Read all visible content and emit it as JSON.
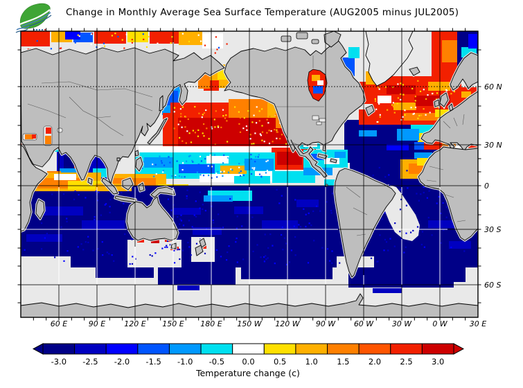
{
  "title": "Change in Monthly Average Sea Surface Temperature (AUG2005 minus JUL2005)",
  "logo": {
    "name": "green-leaf-ocean-logo"
  },
  "map": {
    "lon_tick_labels": [
      "60 E",
      "90 E",
      "120 E",
      "150 E",
      "180 E",
      "150 W",
      "120 W",
      "90 W",
      "60 W",
      "30 W",
      "0 W",
      "30 E"
    ],
    "lat_tick_labels": [
      "60 N",
      "30 N",
      "0",
      "30 S",
      "60 S"
    ]
  },
  "palette": {
    "land": "#BEBEBE",
    "ice": "#E8E8E8",
    "nodata": "#E9E9E9",
    "halo": "#E0E0E0",
    "coastline": "#000000",
    "country_border": "#5a5a5a",
    "grid_dark": "#000000",
    "grid_light": "#FFFFFF"
  },
  "colorbar": {
    "levels": [
      "-3.0",
      "-2.5",
      "-2.0",
      "-1.5",
      "-1.0",
      "-0.5",
      "0.0",
      "0.5",
      "1.0",
      "1.5",
      "2.0",
      "2.5",
      "3.0"
    ],
    "colors": [
      "#000087",
      "#0000C0",
      "#0000FF",
      "#0055FF",
      "#0099FF",
      "#00E0F0",
      "#FFFFFF",
      "#FFE000",
      "#FFB000",
      "#FF8000",
      "#FF5500",
      "#F22000",
      "#CD0000"
    ],
    "arrow_left_color": "#000087",
    "arrow_right_color": "#CD0000",
    "caption": "Temperature change  (c)"
  },
  "chart_data": {
    "type": "heatmap",
    "title": "Change in Monthly Average Sea Surface Temperature (AUG2005 minus JUL2005)",
    "x_tick_labels": [
      "60 E",
      "90 E",
      "120 E",
      "150 E",
      "180 E",
      "150 W",
      "120 W",
      "90 W",
      "60 W",
      "30 W",
      "0 W",
      "30 E"
    ],
    "y_tick_labels": [
      "60 N",
      "30 N",
      "0",
      "30 S",
      "60 S"
    ],
    "colorbar_levels": [
      -3.0,
      -2.5,
      -2.0,
      -1.5,
      -1.0,
      -0.5,
      0.0,
      0.5,
      1.0,
      1.5,
      2.0,
      2.5,
      3.0
    ],
    "colorbar_colors": [
      "#000087",
      "#0000C0",
      "#0000FF",
      "#0055FF",
      "#0099FF",
      "#00E0F0",
      "#FFFFFF",
      "#FFE000",
      "#FFB000",
      "#FF8000",
      "#FF5500",
      "#F22000",
      "#CD0000"
    ],
    "colorbar_caption": "Temperature change  (c)",
    "legend_position": "bottom",
    "grid": true,
    "regions_summary": [
      {
        "region": "North Pacific 25N-45N",
        "change_c": "+2.5 to +3 (strong warming, deep red)"
      },
      {
        "region": "Bering Sea / Gulf of Alaska",
        "change_c": "+1 to +2.5 (orange/yellow)"
      },
      {
        "region": "Tropical North Pacific 5N-20N",
        "change_c": "-0.5 to -1.5 (cyan/blue band)"
      },
      {
        "region": "Eastern Pacific off Mexico",
        "change_c": "+2 to +3 (red patch)"
      },
      {
        "region": "Equatorial Indian Ocean",
        "change_c": "+0.5 to +1.5 (yellow/orange)"
      },
      {
        "region": "Southern Hemisphere oceans 10S-50S",
        "change_c": "-2.5 to -3 (dark navy)"
      },
      {
        "region": "North Atlantic 45N-65N",
        "change_c": "+2 to +3 (red)"
      },
      {
        "region": "Subtropical North Atlantic 10N-45N",
        "change_c": "-1.5 to -3 (dark blue)"
      },
      {
        "region": "West African coast 8N-20N",
        "change_c": "+1 to +2 (yellow/orange)"
      },
      {
        "region": "Southern Ocean poleward of ~50S",
        "change_c": "no data (light gray)"
      }
    ]
  }
}
